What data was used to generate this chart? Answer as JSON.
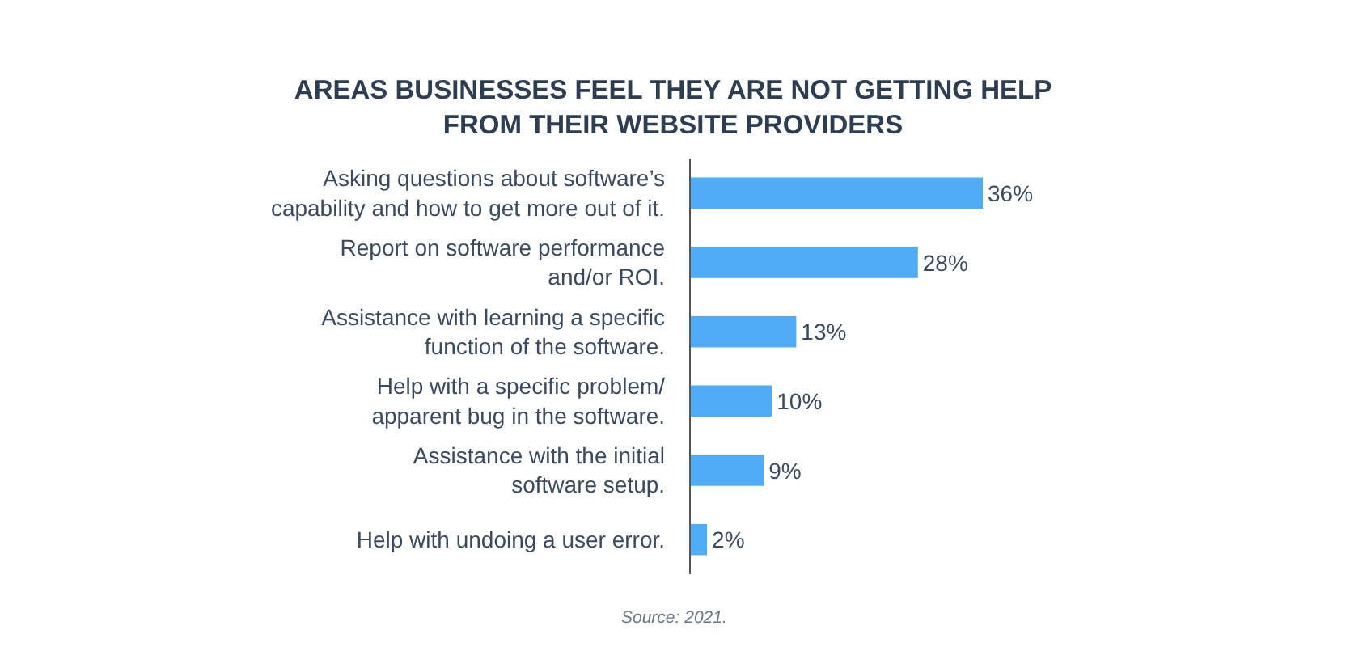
{
  "chart_data": {
    "type": "bar",
    "orientation": "horizontal",
    "title": "AREAS BUSINESSES FEEL THEY ARE NOT GETTING HELP\nFROM THEIR WEBSITE PROVIDERS",
    "categories": [
      "Asking questions about software’s\ncapability and how to get more out of it.",
      "Report on software performance\nand/or ROI.",
      "Assistance with learning a specific\nfunction of the software.",
      "Help with a specific problem/\napparent bug in the software.",
      "Assistance with the initial\nsoftware setup.",
      "Help with undoing a user error."
    ],
    "values": [
      36,
      28,
      13,
      10,
      9,
      2
    ],
    "value_labels": [
      "36%",
      "28%",
      "13%",
      "10%",
      "9%",
      "2%"
    ],
    "color": "#4fadf7",
    "tick_labels": "y",
    "annotations": [
      "Source: 2021."
    ]
  }
}
